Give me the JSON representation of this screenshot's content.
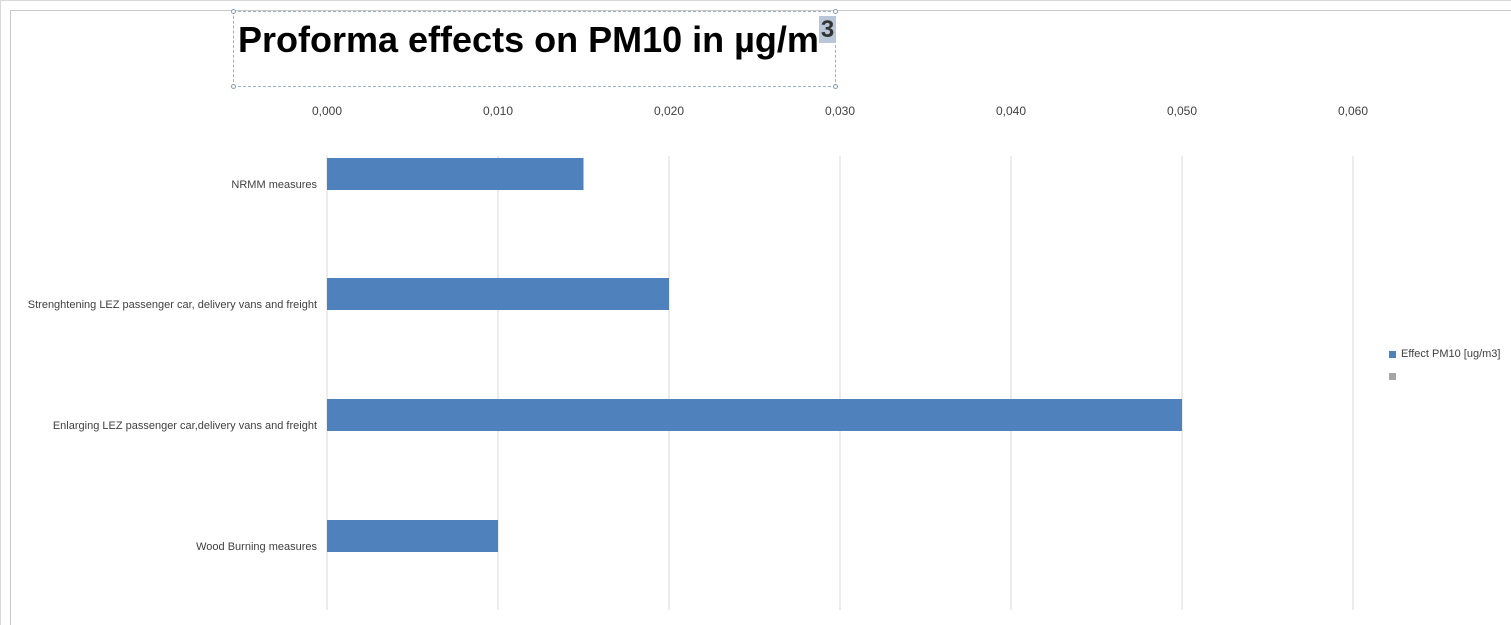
{
  "chart_data": {
    "type": "bar",
    "orientation": "horizontal",
    "title": "Proforma effects on PM10 in µg/m",
    "title_superscript": "3",
    "categories": [
      "NRMM measures",
      "Strenghtening LEZ passenger car, delivery vans and freight",
      "Enlarging LEZ passenger car,delivery vans and freight",
      "Wood Burning measures"
    ],
    "series": [
      {
        "name": "Effect PM10 [ug/m3]",
        "color": "#4f81bd",
        "values": [
          0.015,
          0.02,
          0.05,
          0.01
        ]
      }
    ],
    "xlim": [
      0,
      0.06
    ],
    "x_ticks": [
      "0,000",
      "0,010",
      "0,020",
      "0,030",
      "0,040",
      "0,050",
      "0,060"
    ],
    "x_axis_position": "top",
    "grid": true,
    "legend": {
      "position": "right",
      "entries": [
        {
          "label": "Effect PM10 [ug/m3]",
          "color": "#4f81bd"
        },
        {
          "label": "",
          "color": "#a6a6a6"
        }
      ]
    }
  }
}
